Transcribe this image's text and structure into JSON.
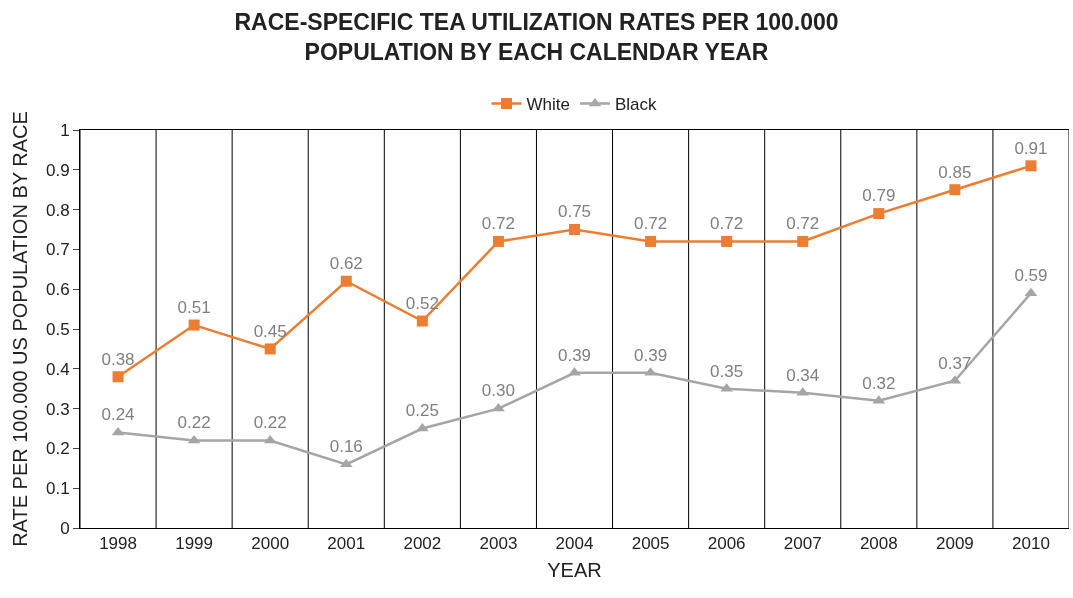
{
  "chart_data": {
    "type": "line",
    "title": "RACE-SPECIFIC TEA UTILIZATION RATES PER 100.000\nPOPULATION BY EACH CALENDAR YEAR",
    "xlabel": "YEAR",
    "ylabel": "RATE PER 100.000 US POPULATION BY RACE",
    "categories": [
      "1998",
      "1999",
      "2000",
      "2001",
      "2002",
      "2003",
      "2004",
      "2005",
      "2006",
      "2007",
      "2008",
      "2009",
      "2010"
    ],
    "series": [
      {
        "name": "White",
        "color": "#ed7d31",
        "marker": "square",
        "values": [
          0.38,
          0.51,
          0.45,
          0.62,
          0.52,
          0.72,
          0.75,
          0.72,
          0.72,
          0.72,
          0.79,
          0.85,
          0.91
        ],
        "value_labels": [
          "0.38",
          "0.51",
          "0.45",
          "0.62",
          "0.52",
          "0.72",
          "0.75",
          "0.72",
          "0.72",
          "0.72",
          "0.79",
          "0.85",
          "0.91"
        ]
      },
      {
        "name": "Black",
        "color": "#a5a5a5",
        "marker": "triangle",
        "values": [
          0.24,
          0.22,
          0.22,
          0.16,
          0.25,
          0.3,
          0.39,
          0.39,
          0.35,
          0.34,
          0.32,
          0.37,
          0.59
        ],
        "value_labels": [
          "0.24",
          "0.22",
          "0.22",
          "0.16",
          "0.25",
          "0.30",
          "0.39",
          "0.39",
          "0.35",
          "0.34",
          "0.32",
          "0.37",
          "0.59"
        ]
      }
    ],
    "ylim": [
      0,
      1
    ],
    "yticks": [
      0,
      0.1,
      0.2,
      0.3,
      0.4,
      0.5,
      0.6,
      0.7,
      0.8,
      0.9,
      1
    ],
    "grid": "x",
    "legend": "top",
    "line_style": "solid"
  }
}
